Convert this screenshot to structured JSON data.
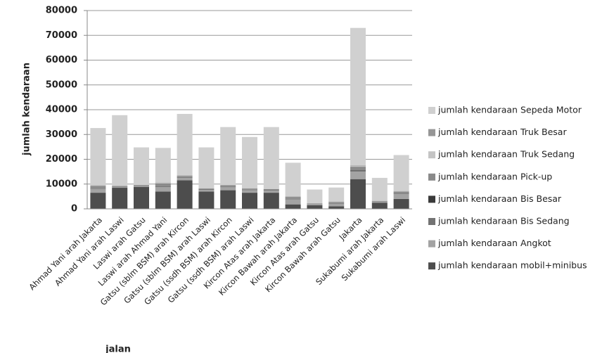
{
  "chart_data": {
    "type": "stacked_bar",
    "x_label": "jalan",
    "y_label": "jumlah kendaraan",
    "categories": [
      "Ahmad Yani arah Jakarta",
      "Ahmad Yani arah Laswi",
      "Laswi arah Gatsu",
      "Laswi arah Ahmad Yani",
      "Gatsu (sblm BSM) arah Kircon",
      "Gatsu (sblm BSM) arah Laswi",
      "Gatsu (ssdh BSM) arah Kircon",
      "Gatsu (ssdh BSM) arah Laswi",
      "Kircon Atas arah Jakarta",
      "Kircon Bawah arah Jakarta",
      "Kircon Atas arah Gatsu",
      "Kircon Bawah arah Gatsu",
      "Jakarta",
      "Sukabumi arah Jakarta",
      "Sukabumi arah Laswi"
    ],
    "series": [
      {
        "name": "jumlah kendaraan mobil+minibus",
        "color": "#4d4d4d",
        "values": [
          6500,
          8500,
          8800,
          7000,
          11500,
          7000,
          7500,
          6500,
          6500,
          1800,
          1500,
          1000,
          12000,
          2500,
          4000
        ]
      },
      {
        "name": "jumlah kendaraan Angkot",
        "color": "#a3a3a3",
        "values": [
          1500,
          300,
          300,
          1800,
          1000,
          600,
          1200,
          1000,
          800,
          2000,
          300,
          1000,
          3000,
          300,
          2000
        ]
      },
      {
        "name": "jumlah kendaraan Bis Sedang",
        "color": "#737373",
        "values": [
          200,
          100,
          100,
          200,
          200,
          100,
          200,
          100,
          100,
          100,
          50,
          50,
          300,
          50,
          100
        ]
      },
      {
        "name": "jumlah kendaraan Bis Besar",
        "color": "#3a3a3a",
        "values": [
          100,
          100,
          100,
          100,
          100,
          100,
          100,
          100,
          100,
          100,
          50,
          50,
          200,
          50,
          100
        ]
      },
      {
        "name": "jumlah kendaraan Pick-up",
        "color": "#8a8a8a",
        "values": [
          1000,
          200,
          300,
          1200,
          500,
          400,
          500,
          500,
          500,
          800,
          300,
          600,
          1500,
          300,
          800
        ]
      },
      {
        "name": "jumlah kendaraan Truk Sedang",
        "color": "#c4c4c4",
        "values": [
          200,
          100,
          100,
          200,
          200,
          100,
          100,
          100,
          100,
          200,
          100,
          200,
          300,
          100,
          200
        ]
      },
      {
        "name": "jumlah kendaraan Truk Besar",
        "color": "#969696",
        "values": [
          100,
          50,
          50,
          100,
          100,
          50,
          50,
          50,
          50,
          100,
          50,
          100,
          200,
          50,
          100
        ]
      },
      {
        "name": "jumlah kendaraan Sepeda Motor",
        "color": "#d0d0d0",
        "values": [
          23000,
          28450,
          15050,
          14000,
          24700,
          16450,
          23350,
          20650,
          24850,
          13500,
          5450,
          5600,
          55500,
          9150,
          14400
        ]
      }
    ],
    "ylim": [
      0,
      80000
    ],
    "yticks": [
      0,
      10000,
      20000,
      30000,
      40000,
      50000,
      60000,
      70000,
      80000
    ],
    "grid": true
  }
}
